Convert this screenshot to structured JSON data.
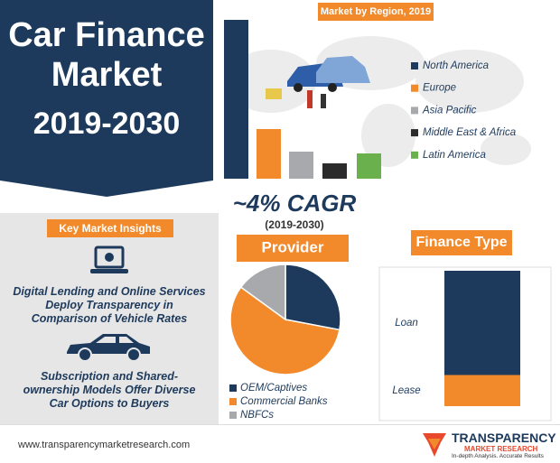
{
  "header": {
    "title_lines": [
      "Car Finance",
      "Market",
      "2019-2030"
    ]
  },
  "cagr": {
    "value": "~4% CAGR",
    "period": "(2019-2030)"
  },
  "insights": {
    "heading": "Key Market Insights",
    "items": [
      "Digital Lending and Online Services Deploy Transparency in Comparison of Vehicle Rates",
      "Subscription and Shared-ownership Models Offer Diverse Car Options to Buyers"
    ]
  },
  "footer": {
    "url": "www.transparencymarketresearch.com",
    "logo": {
      "name": "TRANSPARENCY",
      "sub": "MARKET RESEARCH",
      "tagline": "In-depth Analysis. Accurate Results"
    }
  },
  "chart_data": [
    {
      "type": "bar",
      "title": "Market by Region, 2019",
      "categories": [
        "North America",
        "Europe",
        "Asia Pacific",
        "Middle East & Africa",
        "Latin America"
      ],
      "values": [
        176,
        55,
        30,
        17,
        28
      ],
      "colors": [
        "#1d3a5c",
        "#f2892b",
        "#a7a9ac",
        "#2b2b2b",
        "#6ab04c"
      ]
    },
    {
      "type": "pie",
      "title": "Provider",
      "categories": [
        "OEM/Captives",
        "Commercial Banks",
        "NBFCs"
      ],
      "values": [
        28,
        57,
        15
      ],
      "colors": [
        "#1d3a5c",
        "#f2892b",
        "#a7a9ac"
      ]
    },
    {
      "type": "stacked_bar",
      "title": "Finance Type",
      "categories": [
        "Loan",
        "Lease"
      ],
      "values": [
        77,
        23
      ],
      "colors": [
        "#1d3a5c",
        "#f2892b"
      ]
    }
  ]
}
